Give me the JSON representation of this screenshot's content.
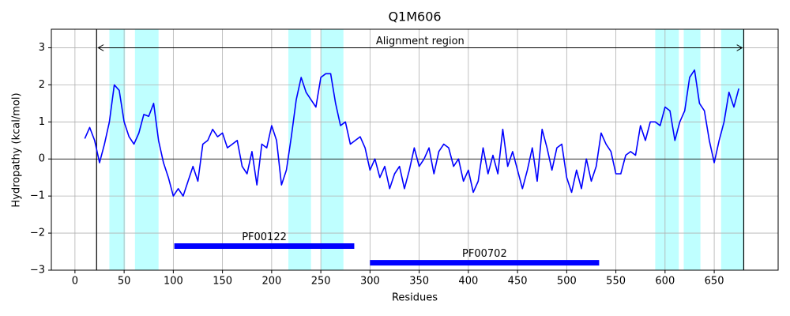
{
  "chart_data": {
    "type": "line",
    "title": "Q1M606",
    "x_label": "Residues",
    "y_label": "Hydropathy (kcal/mol)",
    "x": [
      10,
      15,
      20,
      25,
      30,
      35,
      40,
      45,
      50,
      55,
      60,
      65,
      70,
      75,
      80,
      85,
      90,
      95,
      100,
      105,
      110,
      115,
      120,
      125,
      130,
      135,
      140,
      145,
      150,
      155,
      160,
      165,
      170,
      175,
      180,
      185,
      190,
      195,
      200,
      205,
      210,
      215,
      220,
      225,
      230,
      235,
      240,
      245,
      250,
      255,
      260,
      265,
      270,
      275,
      280,
      285,
      290,
      295,
      300,
      305,
      310,
      315,
      320,
      325,
      330,
      335,
      340,
      345,
      350,
      355,
      360,
      365,
      370,
      375,
      380,
      385,
      390,
      395,
      400,
      405,
      410,
      415,
      420,
      425,
      430,
      435,
      440,
      445,
      450,
      455,
      460,
      465,
      470,
      475,
      480,
      485,
      490,
      495,
      500,
      505,
      510,
      515,
      520,
      525,
      530,
      535,
      540,
      545,
      550,
      555,
      560,
      565,
      570,
      575,
      580,
      585,
      590,
      595,
      600,
      605,
      610,
      615,
      620,
      625,
      630,
      635,
      640,
      645,
      650,
      655,
      660,
      665,
      670,
      675
    ],
    "values": [
      0.55,
      0.85,
      0.5,
      -0.1,
      0.4,
      1.0,
      2.0,
      1.85,
      1.0,
      0.6,
      0.4,
      0.7,
      1.2,
      1.15,
      1.5,
      0.5,
      -0.1,
      -0.5,
      -1.0,
      -0.8,
      -1.0,
      -0.6,
      -0.2,
      -0.6,
      0.4,
      0.5,
      0.8,
      0.6,
      0.7,
      0.3,
      0.4,
      0.5,
      -0.2,
      -0.4,
      0.2,
      -0.7,
      0.4,
      0.3,
      0.9,
      0.5,
      -0.7,
      -0.3,
      0.6,
      1.6,
      2.2,
      1.8,
      1.6,
      1.4,
      2.2,
      2.3,
      2.3,
      1.5,
      0.9,
      1.0,
      0.4,
      0.5,
      0.6,
      0.3,
      -0.3,
      0.0,
      -0.5,
      -0.2,
      -0.8,
      -0.4,
      -0.2,
      -0.8,
      -0.3,
      0.3,
      -0.2,
      0.0,
      0.3,
      -0.4,
      0.2,
      0.4,
      0.3,
      -0.2,
      0.0,
      -0.6,
      -0.3,
      -0.9,
      -0.6,
      0.3,
      -0.4,
      0.1,
      -0.4,
      0.8,
      -0.2,
      0.2,
      -0.3,
      -0.8,
      -0.3,
      0.3,
      -0.6,
      0.8,
      0.3,
      -0.3,
      0.3,
      0.4,
      -0.5,
      -0.9,
      -0.3,
      -0.8,
      0.0,
      -0.6,
      -0.2,
      0.7,
      0.4,
      0.2,
      -0.4,
      -0.4,
      0.1,
      0.2,
      0.1,
      0.9,
      0.5,
      1.0,
      1.0,
      0.9,
      1.4,
      1.3,
      0.5,
      1.0,
      1.3,
      2.2,
      2.4,
      1.5,
      1.3,
      0.5,
      -0.1,
      0.5,
      1.0,
      1.8,
      1.4,
      1.9
    ],
    "color": "#0000ff",
    "regions": [
      [
        35,
        51
      ],
      [
        61,
        85
      ],
      [
        217,
        240
      ],
      [
        250,
        273
      ],
      [
        590,
        614
      ],
      [
        619,
        636
      ],
      [
        657,
        680
      ]
    ],
    "region_color": "#bfffff",
    "alignment": {
      "text": "Alignment region",
      "start": 22,
      "end": 680,
      "y": 3
    },
    "domains": [
      {
        "name": "PF00122",
        "start": 101,
        "end": 284,
        "y": -2.35
      },
      {
        "name": "PF00702",
        "start": 300,
        "end": 533,
        "y": -2.8
      }
    ],
    "domain_color": "#0000ff",
    "xlim": [
      -24,
      715
    ],
    "ylim": [
      -3,
      3.5
    ],
    "xticks": [
      0,
      50,
      100,
      150,
      200,
      250,
      300,
      350,
      400,
      450,
      500,
      550,
      600,
      650
    ],
    "yticks": [
      {
        "value": -3,
        "label": "−3"
      },
      {
        "value": -2,
        "label": "−2"
      },
      {
        "value": -1,
        "label": "−1"
      },
      0,
      1,
      2,
      3
    ],
    "grid": true,
    "zero_line": true
  }
}
